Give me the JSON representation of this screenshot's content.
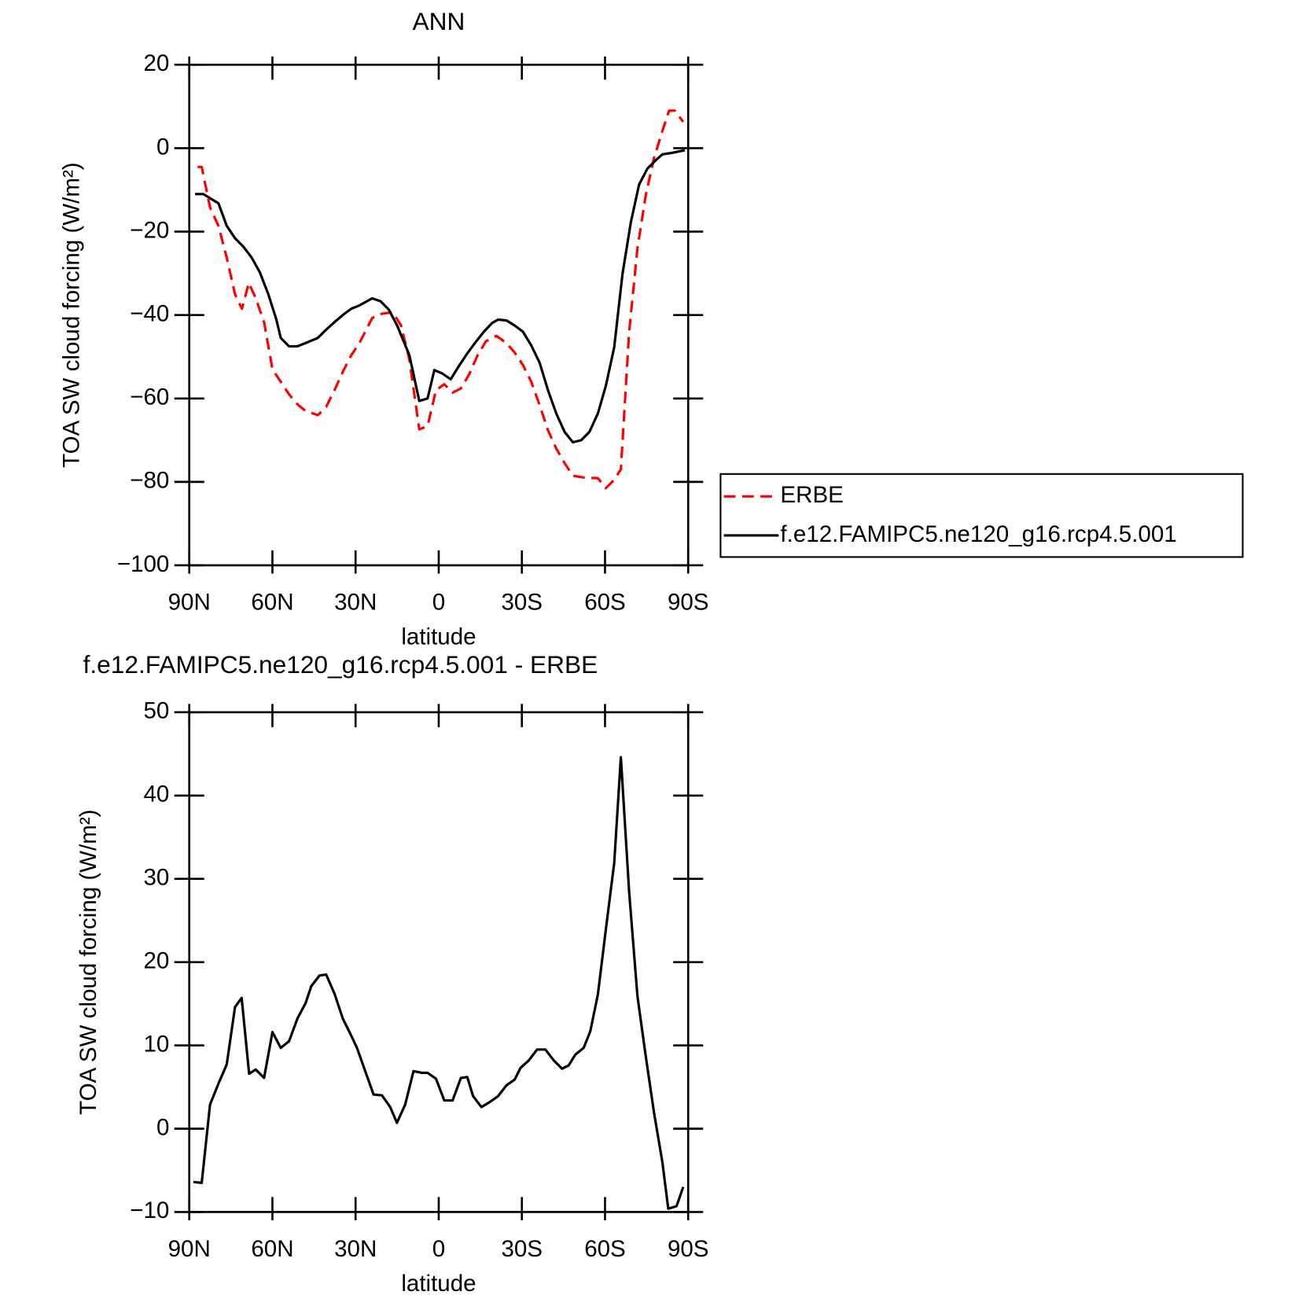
{
  "chart_data": [
    {
      "type": "line",
      "title": "ANN",
      "xlabel": "latitude",
      "ylabel": "TOA SW cloud forcing (W/m²)",
      "xlim": [
        90,
        -90
      ],
      "xticks": [
        {
          "value": 90,
          "label": "90N"
        },
        {
          "value": 60,
          "label": "60N"
        },
        {
          "value": 30,
          "label": "30N"
        },
        0,
        {
          "value": -30,
          "label": "30S"
        },
        {
          "value": -60,
          "label": "60S"
        },
        {
          "value": -90,
          "label": "90S"
        }
      ],
      "ylim": [
        -100,
        20
      ],
      "yticks": [
        -100,
        -80,
        -60,
        -40,
        -20,
        0,
        20
      ],
      "legend": "outside-right",
      "series": [
        {
          "name": "ERBE",
          "color": "#ff0000",
          "dash": true,
          "x": [
            87,
            85.5,
            82.5,
            79.5,
            76.5,
            73.5,
            71,
            68.5,
            66,
            63,
            60,
            57,
            54,
            51,
            48,
            43.6,
            40.6,
            37.6,
            34.6,
            31.6,
            28.6,
            24,
            20.5,
            16.6,
            13.6,
            10.6,
            7,
            4,
            1,
            -2,
            -5,
            -8,
            -11,
            -14,
            -17,
            -20.8,
            -24.4,
            -27.4,
            -30.4,
            -33.4,
            -36.4,
            -39.4,
            -42.4,
            -45.4,
            -48.4,
            -52.8,
            -57.4,
            -60.3,
            -63.3,
            -65.7,
            -68.7,
            -71.7,
            -74.7,
            -77.7,
            -80.7,
            -83.1,
            -85.2,
            -88.2
          ],
          "values": [
            -4.5,
            -4.5,
            -14.2,
            -18.6,
            -26.2,
            -35,
            -38.5,
            -32.3,
            -36,
            -41.7,
            -53,
            -56,
            -59,
            -61.4,
            -63,
            -64,
            -62,
            -58,
            -53.6,
            -49.7,
            -46.7,
            -40.7,
            -39.7,
            -39.3,
            -42.5,
            -50.6,
            -67.4,
            -66.6,
            -58,
            -56.6,
            -58.6,
            -57.6,
            -54.2,
            -49.7,
            -46.3,
            -45,
            -46.7,
            -49,
            -52,
            -56,
            -61.6,
            -67.6,
            -72,
            -75.5,
            -78.5,
            -79,
            -79.1,
            -81.5,
            -79.5,
            -77,
            -44,
            -24,
            -11.3,
            -2.3,
            4.1,
            9,
            9,
            6.3
          ]
        },
        {
          "name": "f.e12.FAMIPC5.ne120_g16.rcp4.5.001",
          "color": "#000000",
          "dash": false,
          "x": [
            87.9,
            84.9,
            82,
            79.5,
            76.5,
            73.5,
            70.5,
            67.5,
            64.5,
            61.5,
            58.6,
            57,
            54,
            51,
            48,
            43.6,
            40.6,
            37.6,
            34.6,
            31.6,
            28.6,
            24,
            21,
            18,
            15,
            10.6,
            7,
            4,
            1.6,
            -1.3,
            -4.3,
            -7.3,
            -10.3,
            -13.3,
            -16.3,
            -19.3,
            -21.4,
            -24.4,
            -27.4,
            -30.4,
            -33.4,
            -36.4,
            -39.4,
            -42.4,
            -45.4,
            -48.4,
            -51.4,
            -54.4,
            -57.4,
            -60.3,
            -63.3,
            -66.3,
            -69.3,
            -72.3,
            -75.3,
            -78.3,
            -80.7,
            -84.3,
            -88.8
          ],
          "values": [
            -11,
            -11,
            -12.2,
            -13.2,
            -18.6,
            -21.6,
            -23.6,
            -26.2,
            -29.8,
            -35,
            -41,
            -45.5,
            -47.5,
            -47.5,
            -46.7,
            -45.5,
            -43.5,
            -41.7,
            -40,
            -38.5,
            -37.7,
            -36,
            -36.7,
            -38.7,
            -42.5,
            -49.6,
            -60.6,
            -60,
            -53.2,
            -54,
            -55.4,
            -52.2,
            -49.2,
            -46.5,
            -44,
            -41.9,
            -41.1,
            -41.3,
            -42.5,
            -44,
            -47.3,
            -51.4,
            -58,
            -63.6,
            -68,
            -70.5,
            -70,
            -68,
            -63.6,
            -57,
            -47.7,
            -30.1,
            -17.8,
            -8.7,
            -4.9,
            -2.9,
            -1.5,
            -1.1,
            -0.5
          ]
        }
      ]
    },
    {
      "type": "line",
      "title": "f.e12.FAMIPC5.ne120_g16.rcp4.5.001 - ERBE",
      "xlabel": "latitude",
      "ylabel": "TOA SW cloud forcing (W/m²)",
      "xlim": [
        90,
        -90
      ],
      "xticks": [
        {
          "value": 90,
          "label": "90N"
        },
        {
          "value": 60,
          "label": "60N"
        },
        {
          "value": 30,
          "label": "30N"
        },
        0,
        {
          "value": -30,
          "label": "30S"
        },
        {
          "value": -60,
          "label": "60S"
        },
        {
          "value": -90,
          "label": "90S"
        }
      ],
      "ylim": [
        -10,
        50
      ],
      "yticks": [
        -10,
        0,
        10,
        20,
        30,
        40,
        50
      ],
      "series": [
        {
          "color": "#000000",
          "dash": false,
          "x": [
            88.5,
            85.5,
            82.5,
            79.5,
            76.5,
            73.5,
            71.1,
            68.4,
            66,
            63,
            60,
            57,
            54,
            51,
            48,
            46,
            43,
            40.6,
            37.6,
            34.6,
            31.6,
            29.5,
            26.5,
            23.5,
            20.5,
            17.5,
            15.1,
            12.1,
            9.1,
            6.1,
            4,
            1,
            -2,
            -5,
            -8,
            -10.3,
            -12.4,
            -15.4,
            -18.4,
            -21.4,
            -24.4,
            -27.4,
            -29.5,
            -32.5,
            -35.5,
            -38.5,
            -41.5,
            -44.5,
            -46.9,
            -49.3,
            -52.3,
            -54.7,
            -57.4,
            -60.3,
            -63.3,
            -65.7,
            -68.7,
            -71.7,
            -74.7,
            -77.7,
            -80.7,
            -82.8,
            -85.8,
            -88.2
          ],
          "values": [
            -6.4,
            -6.5,
            2.9,
            5.4,
            7.7,
            14.6,
            15.7,
            6.6,
            7.1,
            6.1,
            11.6,
            9.7,
            10.5,
            13.2,
            15.1,
            17.1,
            18.4,
            18.5,
            16.2,
            13.2,
            11.2,
            9.7,
            6.9,
            4.1,
            4,
            2.6,
            0.7,
            2.9,
            6.9,
            6.7,
            6.7,
            6,
            3.4,
            3.4,
            6.1,
            6.2,
            3.9,
            2.6,
            3.2,
            3.9,
            5.2,
            5.9,
            7.3,
            8.2,
            9.5,
            9.5,
            8.2,
            7.2,
            7.6,
            8.9,
            9.7,
            11.7,
            16.1,
            23.9,
            31.9,
            44.6,
            28.4,
            15.9,
            8.7,
            1.9,
            -4,
            -9.6,
            -9.3,
            -7
          ]
        }
      ]
    }
  ]
}
